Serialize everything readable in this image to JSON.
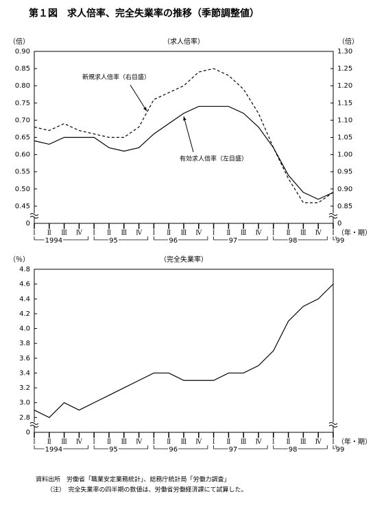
{
  "title": "第１図　求人倍率、完全失業率の推移（季節調整値）",
  "chart_data": [
    {
      "type": "line",
      "subtitle": "（求人倍率）",
      "y_unit": "（倍）",
      "y2_unit": "（倍）",
      "x_unit": "（年・期）",
      "categories": [
        "Ⅰ",
        "Ⅱ",
        "Ⅲ",
        "Ⅳ",
        "Ⅰ",
        "Ⅱ",
        "Ⅲ",
        "Ⅳ",
        "Ⅰ",
        "Ⅱ",
        "Ⅲ",
        "Ⅳ",
        "Ⅰ",
        "Ⅱ",
        "Ⅲ",
        "Ⅳ",
        "Ⅰ",
        "Ⅱ",
        "Ⅲ",
        "Ⅳ",
        "Ⅰ"
      ],
      "year_labels": [
        "1994",
        "95",
        "96",
        "97",
        "98",
        "99"
      ],
      "ylim": [
        0.4,
        0.9
      ],
      "yticks": [
        {
          "value": 0.9,
          "label": "0.90"
        },
        0.85,
        {
          "value": 0.8,
          "label": "0.80"
        },
        0.75,
        {
          "value": 0.7,
          "label": "0.70"
        },
        0.65,
        {
          "value": 0.6,
          "label": "0.60"
        },
        0.55,
        {
          "value": 0.5,
          "label": "0.50"
        },
        0.45,
        0
      ],
      "y2lim": [
        0.8,
        1.3
      ],
      "y2ticks": [
        {
          "value": 1.3,
          "label": "1.30"
        },
        1.25,
        {
          "value": 1.2,
          "label": "1.20"
        },
        1.15,
        {
          "value": 1.1,
          "label": "1.10"
        },
        1.05,
        {
          "value": 1.0,
          "label": "1.00"
        },
        0.95,
        {
          "value": 0.9,
          "label": "0.90"
        },
        0.85,
        0
      ],
      "axis_break": true,
      "series": [
        {
          "name": "新規求人倍率（右目盛）",
          "axis": "y2",
          "dashed": true,
          "color": "#000000",
          "values": [
            1.08,
            1.07,
            1.09,
            1.07,
            1.06,
            1.05,
            1.05,
            1.08,
            1.16,
            1.18,
            1.2,
            1.24,
            1.25,
            1.23,
            1.19,
            1.12,
            1.02,
            0.93,
            0.86,
            0.86,
            0.89
          ]
        },
        {
          "name": "有効求人倍率（左目盛）",
          "color": "#000000",
          "values": [
            0.64,
            0.63,
            0.65,
            0.65,
            0.65,
            0.62,
            0.61,
            0.62,
            0.66,
            0.69,
            0.72,
            0.74,
            0.74,
            0.74,
            0.72,
            0.68,
            0.62,
            0.54,
            0.49,
            0.47,
            0.49
          ]
        }
      ]
    },
    {
      "type": "line",
      "subtitle": "（完全失業率）",
      "y_unit": "（％）",
      "x_unit": "（年・期）",
      "categories": [
        "Ⅰ",
        "Ⅱ",
        "Ⅲ",
        "Ⅳ",
        "Ⅰ",
        "Ⅱ",
        "Ⅲ",
        "Ⅳ",
        "Ⅰ",
        "Ⅱ",
        "Ⅲ",
        "Ⅳ",
        "Ⅰ",
        "Ⅱ",
        "Ⅲ",
        "Ⅳ",
        "Ⅰ",
        "Ⅱ",
        "Ⅲ",
        "Ⅳ",
        "Ⅰ"
      ],
      "year_labels": [
        "1994",
        "95",
        "96",
        "97",
        "98",
        "99"
      ],
      "ylim": [
        2.6,
        4.8
      ],
      "yticks": [
        4.8,
        4.6,
        4.4,
        4.2,
        {
          "value": 4.0,
          "label": "4.0"
        },
        3.8,
        3.6,
        3.4,
        3.2,
        {
          "value": 3.0,
          "label": "3.0"
        },
        2.8,
        0
      ],
      "axis_break": true,
      "series": [
        {
          "color": "#000000",
          "values": [
            2.9,
            2.8,
            3.0,
            2.9,
            3.0,
            3.1,
            3.2,
            3.3,
            3.4,
            3.4,
            3.3,
            3.3,
            3.3,
            3.4,
            3.4,
            3.5,
            3.7,
            4.1,
            4.3,
            4.4,
            4.6
          ]
        }
      ]
    }
  ],
  "notes": [
    "資料出所　労働省「職業安定業務統計」、総務庁統計局「労働力調査」",
    "（注）　完全失業率の四半期の数値は、労働省労働経済課にて試算した。"
  ]
}
